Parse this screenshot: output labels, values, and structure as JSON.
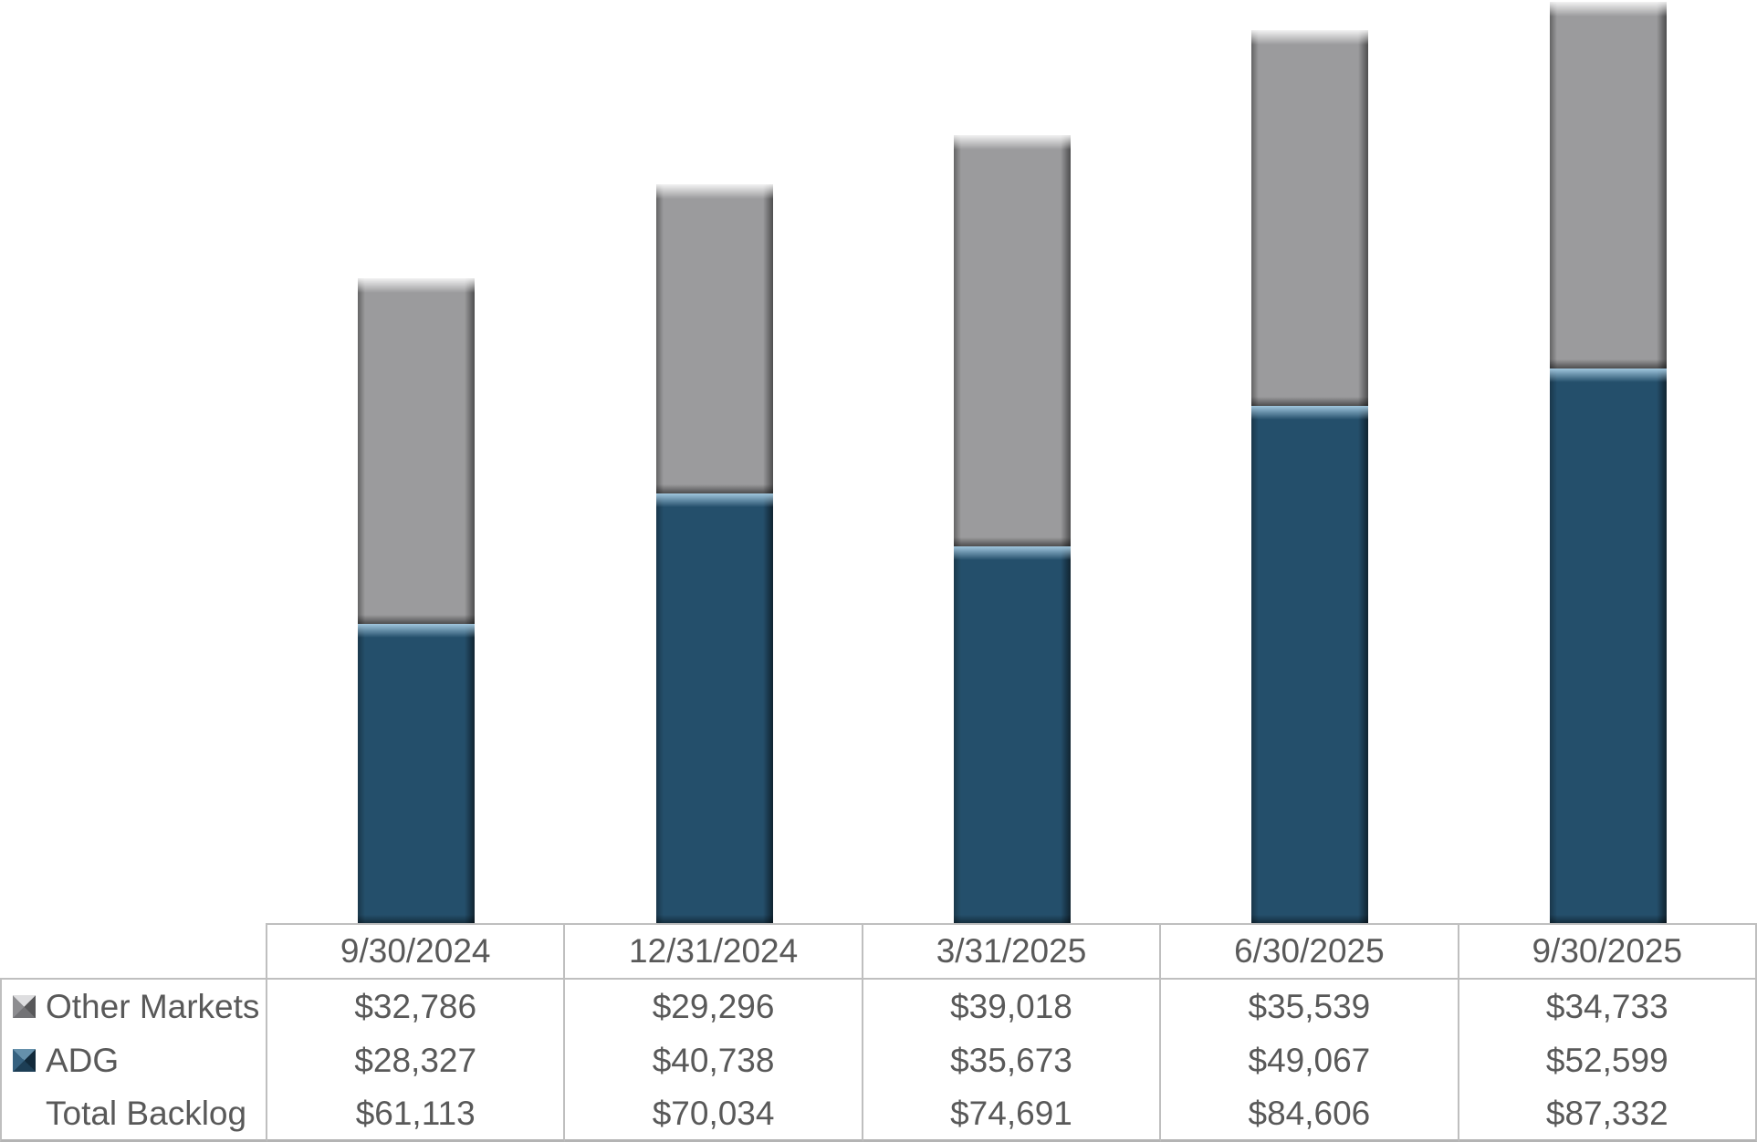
{
  "chart_data": {
    "type": "bar",
    "stacked": true,
    "title": "",
    "xlabel": "",
    "ylabel": "",
    "categories": [
      "9/30/2024",
      "12/31/2024",
      "3/31/2025",
      "6/30/2025",
      "9/30/2025"
    ],
    "series": [
      {
        "name": "ADG",
        "color": "#244f6b",
        "values": [
          28327,
          40738,
          35673,
          49067,
          52599
        ]
      },
      {
        "name": "Other Markets",
        "color": "#9b9b9d",
        "values": [
          32786,
          29296,
          39018,
          35539,
          34733
        ]
      }
    ],
    "totals": {
      "name": "Total Backlog",
      "values": [
        61113,
        70034,
        74691,
        84606,
        87332
      ]
    },
    "value_prefix": "$",
    "ylim": [
      0,
      87500
    ],
    "grid": false,
    "axes_visible": false,
    "legend_position": "data-table-left"
  },
  "table": {
    "corner_label": "",
    "columns": [
      "9/30/2024",
      "12/31/2024",
      "3/31/2025",
      "6/30/2025",
      "9/30/2025"
    ],
    "rows": [
      {
        "label": "Other Markets",
        "key": "other",
        "values": [
          "$32,786",
          "$29,296",
          "$39,018",
          "$35,539",
          "$34,733"
        ]
      },
      {
        "label": "ADG",
        "key": "adg",
        "values": [
          "$28,327",
          "$40,738",
          "$35,673",
          "$49,067",
          "$52,599"
        ]
      },
      {
        "label": "Total Backlog",
        "key": null,
        "values": [
          "$61,113",
          "$70,034",
          "$74,691",
          "$84,606",
          "$87,332"
        ]
      }
    ]
  },
  "colors": {
    "adg_fill": "#244f6b",
    "other_markets_fill": "#9b9b9d",
    "table_border": "#bfbfbf",
    "text": "#595959",
    "background": "#ffffff"
  }
}
